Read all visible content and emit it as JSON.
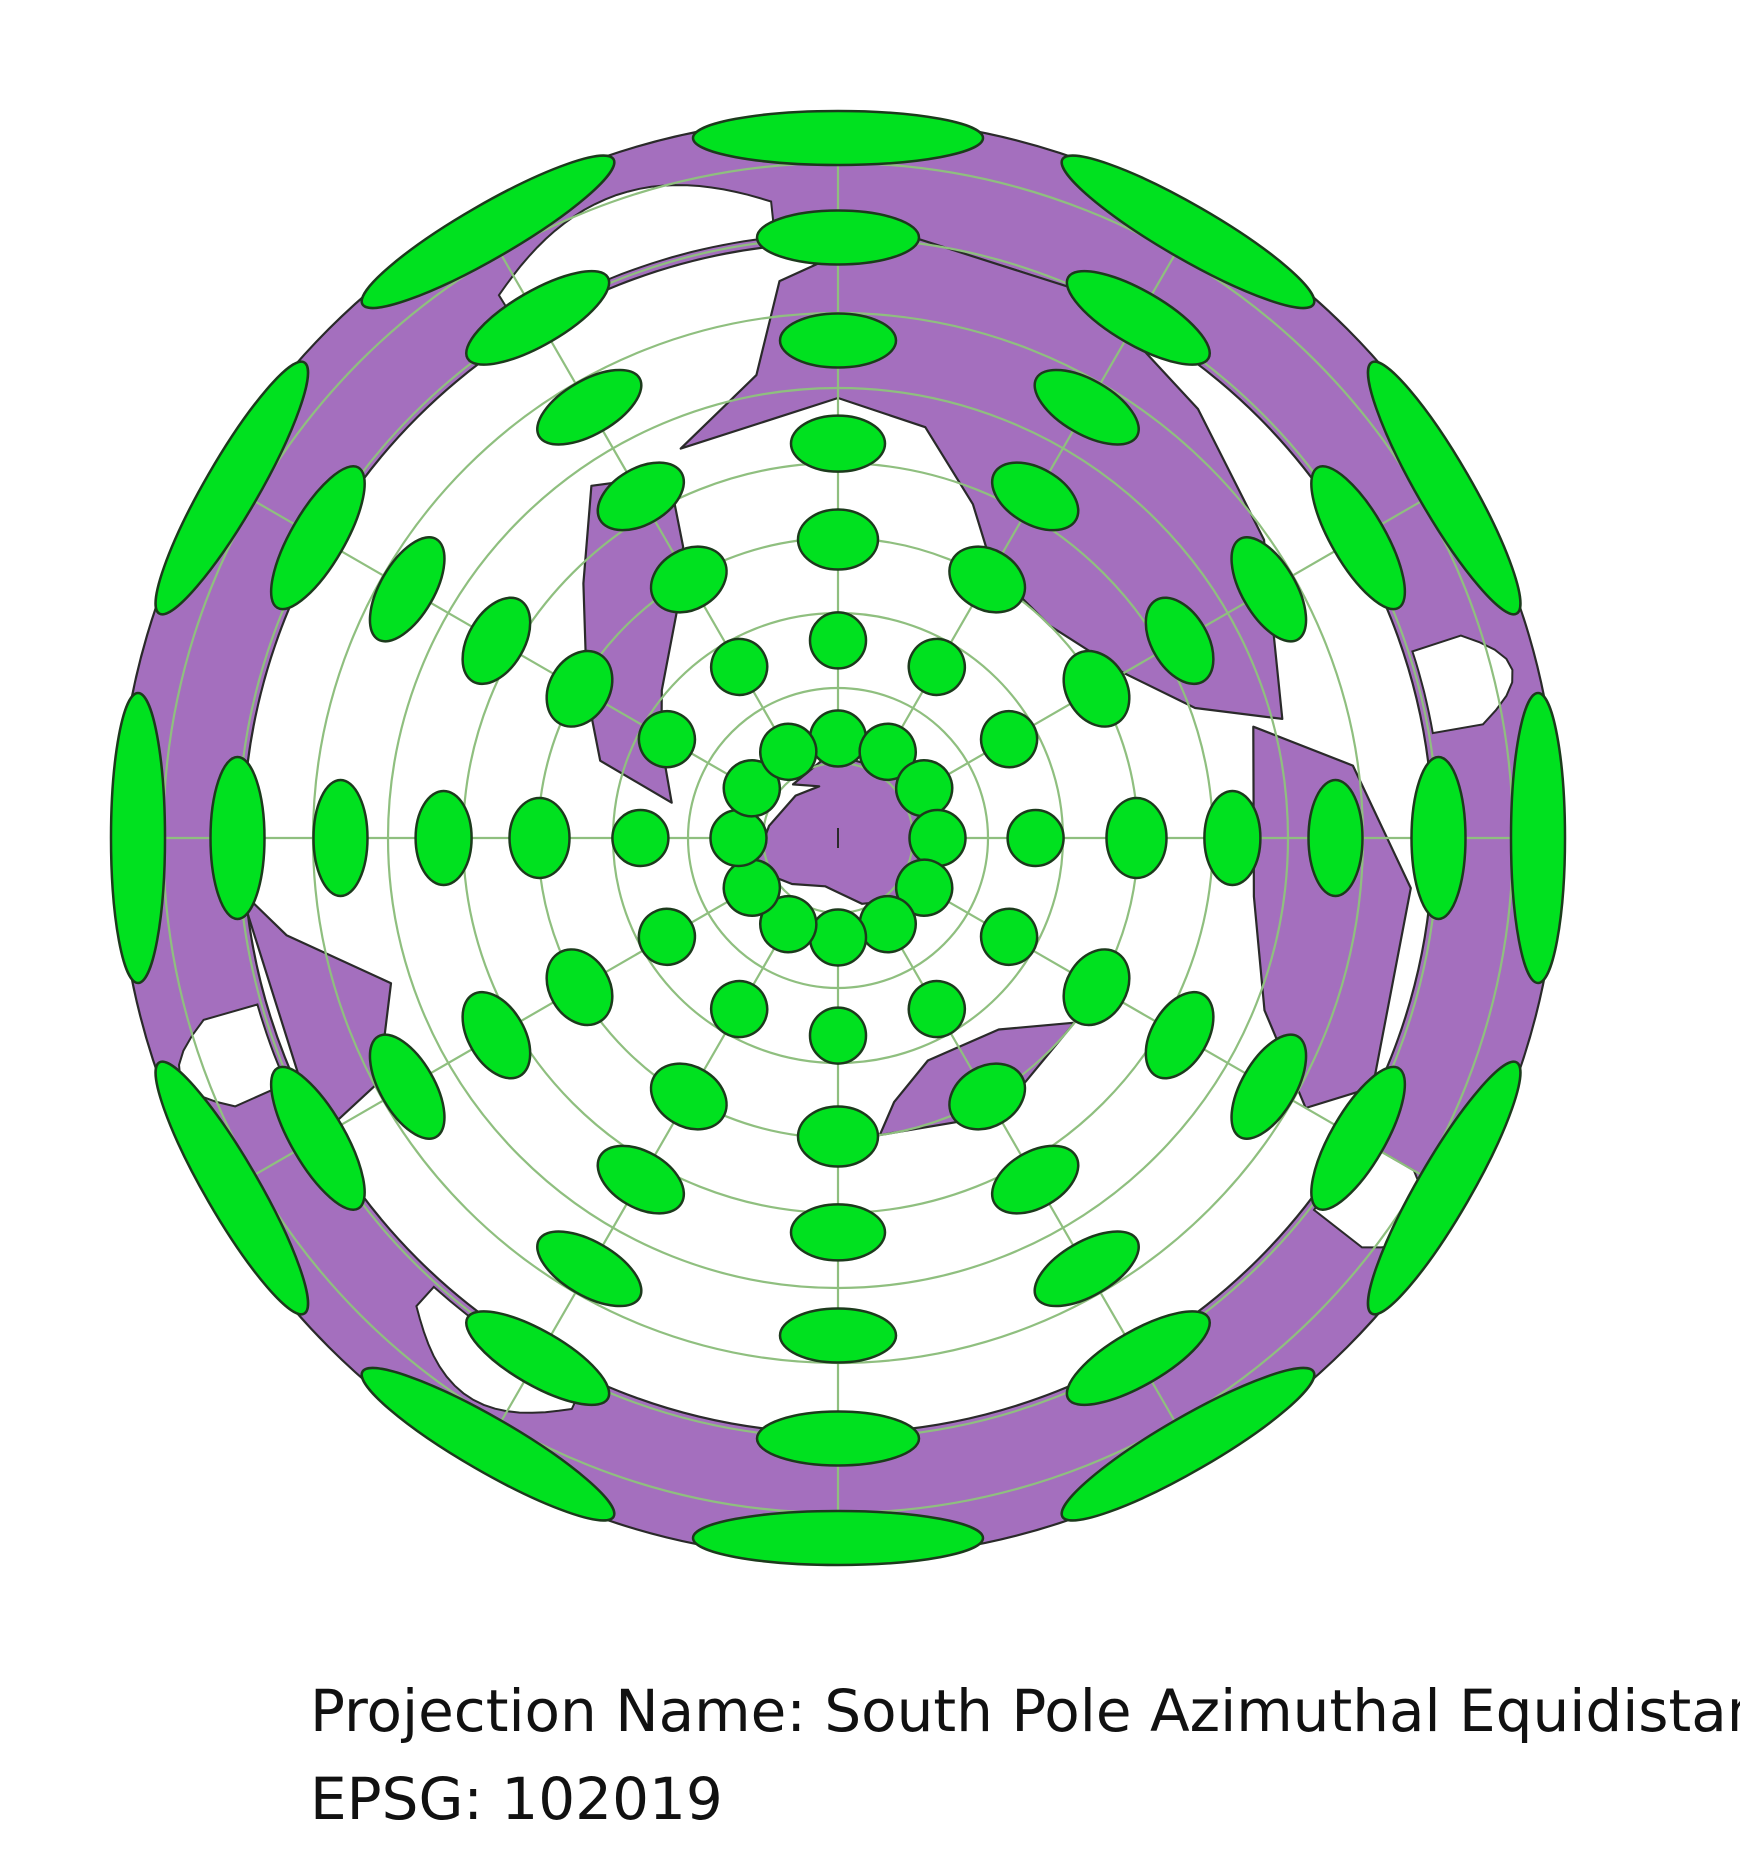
{
  "projection": {
    "name_line": "Projection Name: South Pole Azimuthal Equidistant",
    "epsg_line": "EPSG: 102019"
  },
  "style": {
    "ocean_color": "#ffffff",
    "land_color": "#a46fbe",
    "outline_color": "#2a2a2a",
    "graticule_color": "#8fbf7f",
    "ellipse_color": "#00e11f",
    "ellipse_stroke": "#1c3a1c"
  },
  "map": {
    "type": "azimuthal-equidistant",
    "center": "south-pole",
    "graticule_rings": 9,
    "graticule_meridians": 12,
    "indicatrix_rings": 7,
    "indicatrix_per_ring": 12
  }
}
